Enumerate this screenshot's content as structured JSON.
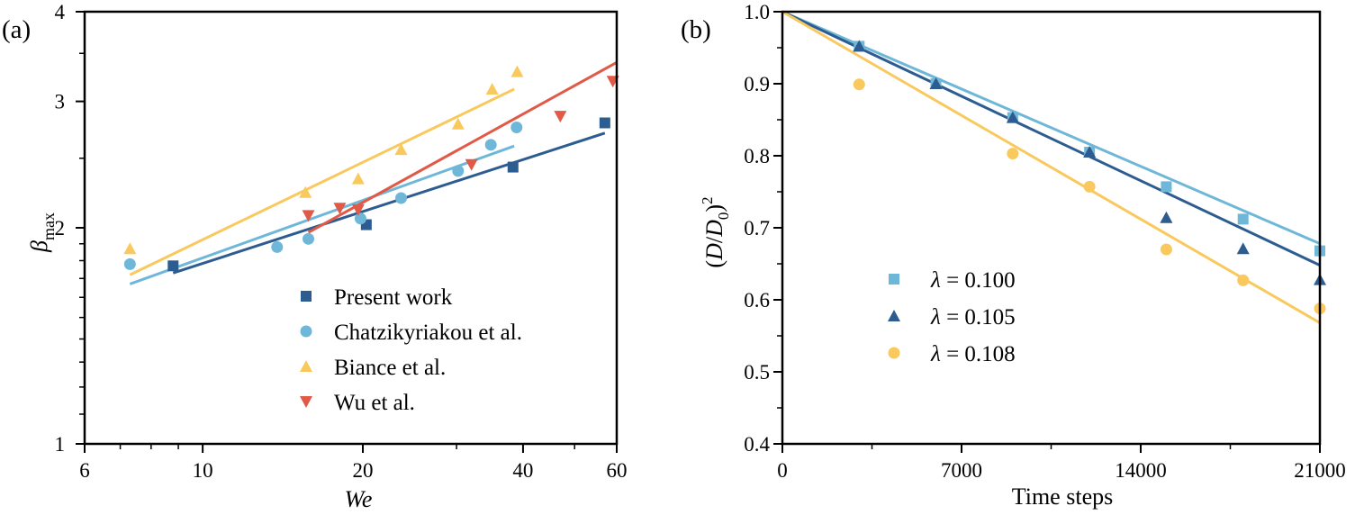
{
  "chart_data": [
    {
      "type": "scatter",
      "panel_label": "(a)",
      "xlabel": "We",
      "ylabel_symbol": "β",
      "ylabel_sub": "max",
      "xscale": "log",
      "yscale": "log",
      "xlim": [
        6,
        60
      ],
      "ylim": [
        1,
        4
      ],
      "xticks": [
        6,
        10,
        20,
        40,
        60
      ],
      "xtick_labels": [
        "6",
        "10",
        "20",
        "40",
        "60"
      ],
      "yticks": [
        1,
        2,
        3,
        4
      ],
      "ytick_labels": [
        "1",
        "2",
        "3",
        "4"
      ],
      "legend_position": "lower-right",
      "series": [
        {
          "name": "Present work",
          "marker": "square",
          "color": "#2d5c91",
          "x": [
            8.8,
            20.3,
            38.3,
            57.0
          ],
          "y": [
            1.77,
            2.02,
            2.43,
            2.8
          ],
          "fit_x": [
            8.8,
            57.0
          ],
          "fit_y": [
            1.73,
            2.71
          ]
        },
        {
          "name": "Chatzikyriakou et al.",
          "marker": "circle",
          "color": "#6fb7d9",
          "x": [
            7.3,
            13.8,
            15.8,
            19.8,
            23.6,
            30.2,
            34.8,
            38.9
          ],
          "y": [
            1.78,
            1.88,
            1.93,
            2.06,
            2.2,
            2.4,
            2.61,
            2.76
          ],
          "fit_x": [
            7.3,
            38.5
          ],
          "fit_y": [
            1.67,
            2.6
          ]
        },
        {
          "name": "Biance et al.",
          "marker": "triangle-up",
          "color": "#f9c95e",
          "x": [
            7.3,
            15.6,
            19.6,
            23.6,
            30.2,
            35.0,
            39.0
          ],
          "y": [
            1.87,
            2.24,
            2.34,
            2.57,
            2.79,
            3.12,
            3.3
          ],
          "fit_x": [
            7.3,
            38.5
          ],
          "fit_y": [
            1.72,
            3.12
          ]
        },
        {
          "name": "Wu et al.",
          "marker": "triangle-down",
          "color": "#e05a47",
          "x": [
            15.8,
            18.1,
            19.6,
            32.0,
            47.0,
            59.0
          ],
          "y": [
            2.08,
            2.13,
            2.12,
            2.45,
            2.86,
            3.2
          ],
          "fit_x": [
            15.8,
            60.0
          ],
          "fit_y": [
            1.97,
            3.4
          ]
        }
      ]
    },
    {
      "type": "scatter",
      "panel_label": "(b)",
      "xlabel": "Time steps",
      "ylabel": "(D/D0)^2",
      "ylabel_parts": [
        "(",
        "D",
        "/",
        "D",
        "0",
        ")",
        "2"
      ],
      "xlim": [
        0,
        21000
      ],
      "ylim": [
        0.4,
        1.0
      ],
      "xticks": [
        0,
        7000,
        14000,
        21000
      ],
      "xtick_labels": [
        "0",
        "7000",
        "14000",
        "21000"
      ],
      "yticks": [
        0.4,
        0.5,
        0.6,
        0.7,
        0.8,
        0.9,
        1.0
      ],
      "ytick_labels": [
        "0.4",
        "0.5",
        "0.6",
        "0.7",
        "0.8",
        "0.9",
        "1.0"
      ],
      "legend_position": "lower-left",
      "legend_symbol": "λ",
      "legend_eq": "= ",
      "series": [
        {
          "name": "λ = 0.100",
          "value_label": "0.100",
          "marker": "square",
          "color": "#6fb7d9",
          "x": [
            3000,
            6000,
            9000,
            12000,
            15000,
            18000,
            21000
          ],
          "y": [
            0.952,
            0.9,
            0.853,
            0.805,
            0.757,
            0.712,
            0.668
          ],
          "fit_x": [
            0,
            21000
          ],
          "fit_y": [
            1.0,
            0.678
          ]
        },
        {
          "name": "λ = 0.105",
          "value_label": "0.105",
          "marker": "triangle-up",
          "color": "#2d5c91",
          "x": [
            3000,
            6000,
            9000,
            12000,
            15000,
            18000,
            21000
          ],
          "y": [
            0.952,
            0.9,
            0.853,
            0.805,
            0.714,
            0.671,
            0.628
          ],
          "fit_x": [
            0,
            21000
          ],
          "fit_y": [
            1.0,
            0.648
          ]
        },
        {
          "name": "λ = 0.108",
          "value_label": "0.108",
          "marker": "circle",
          "color": "#f9c95e",
          "x": [
            3000,
            9000,
            12000,
            15000,
            18000,
            21000
          ],
          "y": [
            0.899,
            0.803,
            0.757,
            0.67,
            0.627,
            0.588
          ],
          "fit_x": [
            0,
            21000
          ],
          "fit_y": [
            1.0,
            0.568
          ]
        }
      ]
    }
  ]
}
